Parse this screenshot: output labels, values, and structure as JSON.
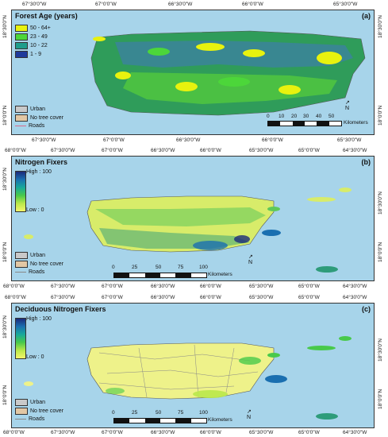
{
  "colors": {
    "water": "#a7d4ea",
    "urban": "#c9c9c9",
    "no_tree": "#e2c7a4",
    "roads": "#d86a8a"
  },
  "panel_a": {
    "title": "Forest Age (years)",
    "label": "(a)",
    "legend": [
      {
        "label": "50 - 64+",
        "color": "#e8f20e"
      },
      {
        "label": "23 - 49",
        "color": "#4cd63a"
      },
      {
        "label": "10 - 22",
        "color": "#1f9d8c"
      },
      {
        "label": "1 - 9",
        "color": "#1f3a9a"
      }
    ],
    "x_ticks": [
      "67°30'0\"W",
      "67°0'0\"W",
      "66°30'0\"W",
      "66°0'0\"W",
      "65°30'0\"W"
    ],
    "y_ticks": [
      "18°30'0\"N",
      "18°0'0\"N"
    ],
    "scale": [
      "0",
      "10",
      "20",
      "30",
      "40",
      "50"
    ],
    "scale_unit": "Kilometers"
  },
  "panel_b": {
    "title": "Nitrogen Fixers",
    "label": "(b)",
    "high": "High : 100",
    "low": "Low : 0",
    "x_ticks": [
      "68°0'0\"W",
      "67°30'0\"W",
      "67°0'0\"W",
      "66°30'0\"W",
      "66°0'0\"W",
      "65°30'0\"W",
      "65°0'0\"W",
      "64°30'0\"W"
    ],
    "y_ticks": [
      "18°30'0\"N",
      "18°0'0\"N"
    ],
    "scale": [
      "0",
      "25",
      "50",
      "75",
      "100"
    ],
    "scale_unit": "Kilometers"
  },
  "panel_c": {
    "title": "Deciduous Nitrogen Fixers",
    "label": "(c)",
    "high": "High : 100",
    "low": "Low : 0",
    "x_ticks": [
      "68°0'0\"W",
      "67°30'0\"W",
      "67°0'0\"W",
      "66°30'0\"W",
      "66°0'0\"W",
      "65°30'0\"W",
      "65°0'0\"W",
      "64°30'0\"W"
    ],
    "y_ticks": [
      "18°30'0\"N",
      "18°0'0\"N"
    ],
    "scale": [
      "0",
      "25",
      "50",
      "75",
      "100"
    ],
    "scale_unit": "Kilometers"
  },
  "common_legend": {
    "urban": "Urban",
    "no_tree": "No tree cover",
    "roads": "Roads"
  },
  "north_label": "N"
}
